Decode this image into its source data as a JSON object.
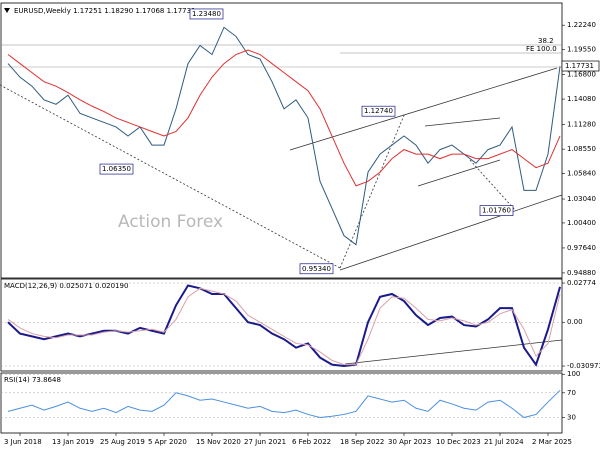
{
  "chart_data": [
    {
      "type": "line",
      "title": "EURUSD,Weekly  1.17251 1.18290 1.17068 1.17731",
      "watermark": "Action Forex",
      "categories": [
        null,
        "3 Jun 2018",
        null,
        null,
        null,
        "13 Jan 2019",
        null,
        null,
        null,
        "25 Aug 2019",
        null,
        null,
        null,
        "5 Apr 2020",
        null,
        null,
        null,
        "15 Nov 2020",
        null,
        null,
        null,
        "27 Jun 2021",
        null,
        null,
        null,
        "6 Feb 2022",
        null,
        null,
        null,
        "18 Sep 2022",
        null,
        null,
        null,
        "30 Apr 2023",
        null,
        null,
        null,
        "10 Dec 2023",
        null,
        null,
        null,
        "21 Jul 2024",
        null,
        null,
        null,
        "2 Mar 2025",
        null
      ],
      "ylim": [
        0.9432,
        1.2469
      ],
      "yticks": [
        {
          "value": 0.9488,
          "label": "0.94880"
        },
        {
          "value": 0.9764,
          "label": "0.97640"
        },
        {
          "value": 1.004,
          "label": "1.00400"
        },
        {
          "value": 1.0304,
          "label": "1.03040"
        },
        {
          "value": 1.0584,
          "label": "1.05840"
        },
        {
          "value": 1.0855,
          "label": "1.08550"
        },
        {
          "value": 1.1128,
          "label": "1.11280"
        },
        {
          "value": 1.1408,
          "label": "1.14080"
        },
        {
          "value": 1.168,
          "label": "1.16800"
        },
        {
          "value": 1.1955,
          "label": "1.19550"
        },
        {
          "value": 1.2224,
          "label": "1.22240"
        }
      ],
      "series": [
        {
          "color": "#2f5a80",
          "values": [
            1.18,
            1.165,
            1.155,
            1.14,
            1.135,
            1.145,
            1.125,
            1.12,
            1.115,
            1.11,
            1.1,
            1.11,
            1.09,
            1.09,
            1.13,
            1.18,
            1.2,
            1.19,
            1.22,
            1.21,
            1.19,
            1.185,
            1.16,
            1.13,
            1.14,
            1.12,
            1.05,
            1.02,
            0.99,
            0.98,
            1.06,
            1.08,
            1.09,
            1.1,
            1.09,
            1.07,
            1.085,
            1.09,
            1.08,
            1.07,
            1.085,
            1.09,
            1.11,
            1.04,
            1.04,
            1.08,
            1.177
          ]
        },
        {
          "color": "#e03030",
          "values": [
            1.19,
            1.18,
            1.17,
            1.16,
            1.155,
            1.148,
            1.14,
            1.133,
            1.127,
            1.12,
            1.115,
            1.11,
            1.105,
            1.1,
            1.105,
            1.12,
            1.145,
            1.165,
            1.18,
            1.19,
            1.195,
            1.19,
            1.18,
            1.17,
            1.16,
            1.15,
            1.13,
            1.1,
            1.07,
            1.045,
            1.05,
            1.06,
            1.075,
            1.085,
            1.08,
            1.08,
            1.075,
            1.08,
            1.08,
            1.075,
            1.075,
            1.08,
            1.085,
            1.075,
            1.065,
            1.07,
            1.1
          ]
        }
      ],
      "annotations": [
        {
          "label": "1.23480",
          "value": 1.2348
        },
        {
          "label": "1.06350",
          "value": 1.0635
        },
        {
          "label": "1.12740",
          "value": 1.1274
        },
        {
          "label": "0.95340",
          "value": 0.9534
        },
        {
          "label": "1.01760",
          "value": 1.0176
        }
      ],
      "last_price": {
        "value": 1.17731,
        "label": "1.17731"
      },
      "fib_labels": [
        "38.2",
        "FE 100.0"
      ]
    },
    {
      "type": "line",
      "title": "MACD(12,26,9) 0.025071 0.020190",
      "ylim": [
        -0.0345,
        0.0306
      ],
      "yticks": [
        {
          "value": -0.030973,
          "label": "-0.030973"
        },
        {
          "value": 0,
          "label": "0.00"
        },
        0.02774
      ],
      "series": [
        {
          "color": "#1a1a8c",
          "values": [
            0.0,
            -0.008,
            -0.01,
            -0.012,
            -0.01,
            -0.008,
            -0.01,
            -0.008,
            -0.006,
            -0.006,
            -0.008,
            -0.004,
            -0.006,
            -0.008,
            0.012,
            0.026,
            0.024,
            0.02,
            0.02,
            0.01,
            0.0,
            -0.002,
            -0.008,
            -0.012,
            -0.018,
            -0.015,
            -0.025,
            -0.03,
            -0.031,
            -0.03,
            0.0,
            0.018,
            0.02,
            0.015,
            0.005,
            -0.002,
            0.003,
            0.004,
            -0.002,
            -0.003,
            0.002,
            0.01,
            0.01,
            -0.018,
            -0.03,
            -0.005,
            0.025
          ]
        },
        {
          "color": "#d9a0a8",
          "values": [
            0.002,
            -0.004,
            -0.008,
            -0.01,
            -0.011,
            -0.009,
            -0.009,
            -0.009,
            -0.007,
            -0.006,
            -0.007,
            -0.006,
            -0.005,
            -0.007,
            0.002,
            0.018,
            0.024,
            0.022,
            0.02,
            0.015,
            0.005,
            0.0,
            -0.005,
            -0.01,
            -0.015,
            -0.016,
            -0.021,
            -0.027,
            -0.03,
            -0.03,
            -0.012,
            0.01,
            0.018,
            0.017,
            0.01,
            0.002,
            0.001,
            0.003,
            0.001,
            -0.002,
            0.0,
            0.006,
            0.009,
            -0.005,
            -0.024,
            -0.015,
            0.02
          ]
        }
      ]
    },
    {
      "type": "line",
      "title": "RSI(14) 73.8648",
      "ylim": [
        5,
        102
      ],
      "yticks": [
        30,
        70,
        100
      ],
      "series": [
        {
          "color": "#4a90e2",
          "values": [
            40,
            45,
            50,
            42,
            48,
            55,
            45,
            40,
            45,
            38,
            48,
            42,
            40,
            50,
            70,
            65,
            58,
            60,
            55,
            50,
            45,
            48,
            40,
            38,
            42,
            35,
            30,
            32,
            35,
            40,
            65,
            60,
            55,
            58,
            45,
            40,
            58,
            52,
            45,
            42,
            55,
            58,
            45,
            30,
            35,
            55,
            74
          ]
        }
      ]
    }
  ]
}
